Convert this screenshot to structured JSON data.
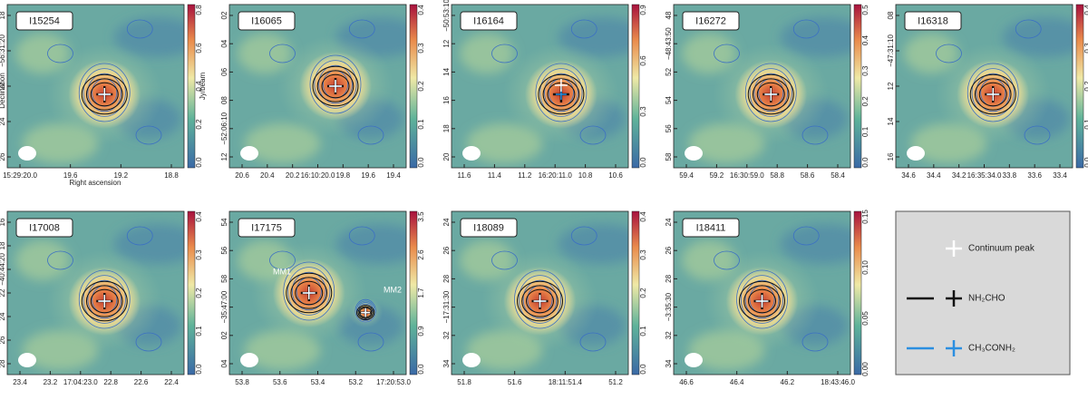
{
  "axis_labels": {
    "y": "Declination",
    "x": "Right ascension"
  },
  "colorbar_label": "Jy/beam",
  "panels": [
    {
      "label": "I15254",
      "yticks": [
        "18",
        "−56:31:20",
        "22",
        "24",
        "26"
      ],
      "xticks": [
        "15:29:20.0",
        "19.6",
        "19.2",
        "18.8"
      ],
      "cbar_ticks": [
        "0.0",
        "0.2",
        "0.4",
        "0.6",
        "0.8"
      ]
    },
    {
      "label": "I16065",
      "yticks": [
        "02",
        "04",
        "06",
        "08",
        "−52:06:10",
        "12"
      ],
      "xticks": [
        "20.6",
        "20.4",
        "20.2",
        "16:10:20.0",
        "19.8",
        "19.6",
        "19.4"
      ],
      "cbar_ticks": [
        "0.0",
        "0.1",
        "0.2",
        "0.3",
        "0.4"
      ]
    },
    {
      "label": "I16164",
      "yticks": [
        "−50:53:10",
        "12",
        "14",
        "16",
        "18",
        "20"
      ],
      "xticks": [
        "11.6",
        "11.4",
        "11.2",
        "16:20:11.0",
        "10.8",
        "10.6"
      ],
      "cbar_ticks": [
        "0.0",
        "0.3",
        "0.6",
        "0.9"
      ]
    },
    {
      "label": "I16272",
      "yticks": [
        "48",
        "−48:43:50",
        "52",
        "54",
        "56",
        "58"
      ],
      "xticks": [
        "59.4",
        "59.2",
        "16:30:59.0",
        "58.8",
        "58.6",
        "58.4"
      ],
      "cbar_ticks": [
        "0.0",
        "0.1",
        "0.2",
        "0.3",
        "0.4",
        "0.5"
      ]
    },
    {
      "label": "I16318",
      "yticks": [
        "08",
        "−47:31:10",
        "12",
        "14",
        "16"
      ],
      "xticks": [
        "34.6",
        "34.4",
        "34.2",
        "16:35:34.0",
        "33.8",
        "33.6",
        "33.4"
      ],
      "cbar_ticks": [
        "0.0",
        "0.1",
        "0.2",
        "0.3",
        "0.4"
      ]
    },
    {
      "label": "I17008",
      "yticks": [
        "16",
        "18",
        "−40:44:20",
        "22",
        "24",
        "26",
        "28"
      ],
      "xticks": [
        "23.4",
        "23.2",
        "17:04:23.0",
        "22.8",
        "22.6",
        "22.4"
      ],
      "cbar_ticks": [
        "0.0",
        "0.1",
        "0.2",
        "0.3",
        "0.4"
      ]
    },
    {
      "label": "I17175",
      "yticks": [
        "54",
        "56",
        "58",
        "−35:47:00",
        "02",
        "04"
      ],
      "xticks": [
        "53.8",
        "53.6",
        "53.4",
        "53.2",
        "17:20:53.0"
      ],
      "cbar_ticks": [
        "0.0",
        "0.9",
        "1.7",
        "2.6",
        "3.5"
      ],
      "annotations": [
        "MM1",
        "MM2"
      ]
    },
    {
      "label": "I18089",
      "yticks": [
        "24",
        "26",
        "28",
        "−17:31:30",
        "32",
        "34"
      ],
      "xticks": [
        "51.8",
        "51.6",
        "18:11:51.4",
        "51.2"
      ],
      "cbar_ticks": [
        "0.0",
        "0.1",
        "0.2",
        "0.3",
        "0.4"
      ]
    },
    {
      "label": "I18411",
      "yticks": [
        "24",
        "26",
        "28",
        "−3:35:30",
        "32",
        "34"
      ],
      "xticks": [
        "46.6",
        "46.4",
        "46.2",
        "18:43:46.0"
      ],
      "cbar_ticks": [
        "0.00",
        "0.05",
        "0.10",
        "0.15"
      ]
    }
  ],
  "legend": [
    "Continuum peak",
    "NH₂CHO",
    "CH₃CONH₂"
  ]
}
